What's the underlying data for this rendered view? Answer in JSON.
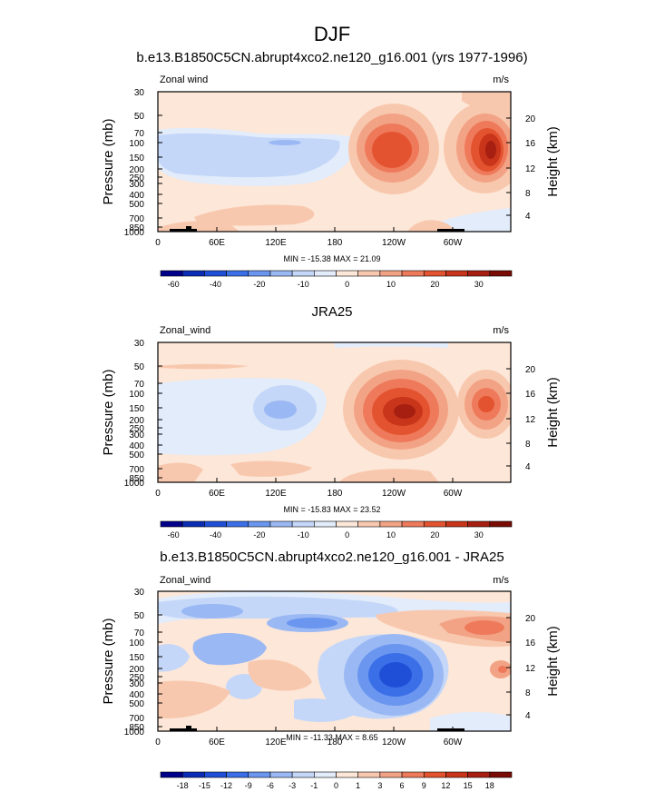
{
  "figure": {
    "title": "DJF"
  },
  "colors": {
    "frame": "#000000",
    "land": "#000000"
  },
  "chart_data": [
    {
      "type": "heatmap",
      "title": "b.e13.B1850C5CN.abrupt4xco2.ne120_g16.001 (yrs 1977-1996)",
      "left_label": "Zonal wind",
      "units": "m/s",
      "ylabel": "Pressure (mb)",
      "ylabel_right": "Height (km)",
      "x_tick_labels": [
        "0",
        "60E",
        "120E",
        "180",
        "120W",
        "60W"
      ],
      "y_tick_labels": [
        "30",
        "50",
        "70",
        "100",
        "150",
        "200",
        "250",
        "300",
        "400",
        "500",
        "700",
        "850",
        "1000"
      ],
      "y2_tick_labels": [
        "20",
        "16",
        "12",
        "8",
        "4"
      ],
      "minmax_text": "MIN = -15.38  MAX =  21.09",
      "colorbar": {
        "labels": [
          "-60",
          "-40",
          "-20",
          "-10",
          "0",
          "10",
          "20",
          "30"
        ],
        "colors": [
          "#00008b",
          "#0b2cb4",
          "#1f4fd6",
          "#3a6fe8",
          "#6a96f0",
          "#9ab8f3",
          "#c4d7f8",
          "#e2ecfb",
          "#fde7d8",
          "#f8c8ae",
          "#f3a385",
          "#ee7a5b",
          "#e3532f",
          "#c8351a",
          "#a71f11",
          "#7a0b05"
        ]
      }
    },
    {
      "type": "heatmap",
      "title": "JRA25",
      "left_label": "Zonal_wind",
      "units": "m/s",
      "ylabel": "Pressure (mb)",
      "ylabel_right": "Height (km)",
      "x_tick_labels": [
        "0",
        "60E",
        "120E",
        "180",
        "120W",
        "60W"
      ],
      "y_tick_labels": [
        "30",
        "50",
        "70",
        "100",
        "150",
        "200",
        "250",
        "300",
        "400",
        "500",
        "700",
        "850",
        "1000"
      ],
      "y2_tick_labels": [
        "20",
        "16",
        "12",
        "8",
        "4"
      ],
      "minmax_text": "MIN = -15.83  MAX =  23.52",
      "colorbar": {
        "labels": [
          "-60",
          "-40",
          "-20",
          "-10",
          "0",
          "10",
          "20",
          "30"
        ],
        "colors": [
          "#00008b",
          "#0b2cb4",
          "#1f4fd6",
          "#3a6fe8",
          "#6a96f0",
          "#9ab8f3",
          "#c4d7f8",
          "#e2ecfb",
          "#fde7d8",
          "#f8c8ae",
          "#f3a385",
          "#ee7a5b",
          "#e3532f",
          "#c8351a",
          "#a71f11",
          "#7a0b05"
        ]
      }
    },
    {
      "type": "heatmap",
      "title": "b.e13.B1850C5CN.abrupt4xco2.ne120_g16.001 - JRA25",
      "left_label": "Zonal_wind",
      "units": "m/s",
      "ylabel": "Pressure (mb)",
      "ylabel_right": "Height (km)",
      "x_tick_labels": [
        "0",
        "60E",
        "120E",
        "180",
        "120W",
        "60W"
      ],
      "y_tick_labels": [
        "30",
        "50",
        "70",
        "100",
        "150",
        "200",
        "250",
        "300",
        "400",
        "500",
        "700",
        "850",
        "1000"
      ],
      "y2_tick_labels": [
        "20",
        "16",
        "12",
        "8",
        "4"
      ],
      "minmax_text": "MIN = -11.33  MAX =   8.65",
      "colorbar": {
        "labels": [
          "-18",
          "-15",
          "-12",
          "-9",
          "-6",
          "-3",
          "-1",
          "0",
          "1",
          "3",
          "6",
          "9",
          "12",
          "15",
          "18"
        ],
        "colors": [
          "#00008b",
          "#0b2cb4",
          "#1f4fd6",
          "#3a6fe8",
          "#6a96f0",
          "#9ab8f3",
          "#c4d7f8",
          "#e2ecfb",
          "#fde7d8",
          "#f8c8ae",
          "#f3a385",
          "#ee7a5b",
          "#e3532f",
          "#c8351a",
          "#a71f11",
          "#7a0b05"
        ]
      }
    }
  ]
}
